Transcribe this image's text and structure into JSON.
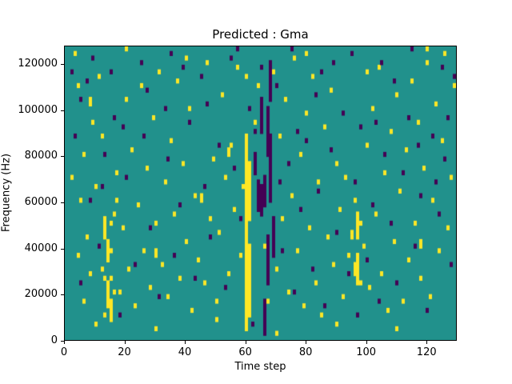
{
  "figure": {
    "title": "Predicted : Gma",
    "xlabel": "Time step",
    "ylabel": "Frequency (Hz)"
  },
  "chart_data": {
    "type": "heatmap",
    "title": "Predicted : Gma",
    "xlabel": "Time step",
    "ylabel": "Frequency (Hz)",
    "xlim": [
      0,
      130
    ],
    "ylim": [
      0,
      128000
    ],
    "x_ticks": [
      0,
      20,
      40,
      60,
      80,
      100,
      120
    ],
    "y_ticks": [
      0,
      20000,
      40000,
      60000,
      80000,
      100000,
      120000
    ],
    "grid_cols": 130,
    "grid_rows": 64,
    "row_height_hz": 2000,
    "legend": "none",
    "colors": {
      "mid": "#21918c",
      "high": "#fde725",
      "low": "#440154"
    },
    "cells": {
      "yellow_ranges": [
        [
          60,
          2,
          44
        ],
        [
          61,
          5,
          20
        ],
        [
          61,
          26,
          38
        ],
        [
          14,
          7,
          12
        ],
        [
          14,
          17,
          21
        ],
        [
          15,
          4,
          8
        ],
        [
          13,
          22,
          26
        ],
        [
          97,
          12,
          18
        ],
        [
          97,
          22,
          27
        ],
        [
          96,
          14,
          16
        ],
        [
          30,
          18,
          19
        ],
        [
          45,
          30,
          31
        ],
        [
          8,
          51,
          52
        ],
        [
          118,
          20,
          21
        ],
        [
          54,
          40,
          41
        ]
      ],
      "yellow_cells": [
        [
          13,
          5
        ],
        [
          13,
          13
        ],
        [
          15,
          13
        ],
        [
          15,
          19
        ],
        [
          15,
          25
        ],
        [
          16,
          27
        ],
        [
          16,
          10
        ],
        [
          12,
          15
        ],
        [
          17,
          30
        ],
        [
          2,
          35
        ],
        [
          3,
          62
        ],
        [
          4,
          18
        ],
        [
          4,
          55
        ],
        [
          5,
          30
        ],
        [
          6,
          8
        ],
        [
          6,
          40
        ],
        [
          7,
          22
        ],
        [
          8,
          14
        ],
        [
          9,
          47
        ],
        [
          10,
          33
        ],
        [
          11,
          57
        ],
        [
          12,
          44
        ],
        [
          17,
          36
        ],
        [
          18,
          10
        ],
        [
          19,
          24
        ],
        [
          20,
          52
        ],
        [
          21,
          15
        ],
        [
          22,
          41
        ],
        [
          23,
          7
        ],
        [
          24,
          29
        ],
        [
          25,
          55
        ],
        [
          26,
          19
        ],
        [
          27,
          37
        ],
        [
          28,
          11
        ],
        [
          29,
          48
        ],
        [
          30,
          25
        ],
        [
          31,
          58
        ],
        [
          32,
          16
        ],
        [
          33,
          34
        ],
        [
          34,
          9
        ],
        [
          35,
          43
        ],
        [
          36,
          27
        ],
        [
          37,
          56
        ],
        [
          38,
          13
        ],
        [
          39,
          38
        ],
        [
          40,
          21
        ],
        [
          41,
          50
        ],
        [
          42,
          6
        ],
        [
          43,
          31
        ],
        [
          44,
          17
        ],
        [
          46,
          12
        ],
        [
          47,
          60
        ],
        [
          48,
          26
        ],
        [
          49,
          39
        ],
        [
          50,
          8
        ],
        [
          51,
          23
        ],
        [
          52,
          53
        ],
        [
          53,
          35
        ],
        [
          54,
          14
        ],
        [
          55,
          42
        ],
        [
          56,
          28
        ],
        [
          57,
          59
        ],
        [
          58,
          18
        ],
        [
          59,
          33
        ],
        [
          63,
          47
        ],
        [
          64,
          55
        ],
        [
          66,
          20
        ],
        [
          67,
          8
        ],
        [
          68,
          36
        ],
        [
          69,
          58
        ],
        [
          70,
          15
        ],
        [
          71,
          44
        ],
        [
          72,
          26
        ],
        [
          73,
          52
        ],
        [
          74,
          10
        ],
        [
          75,
          31
        ],
        [
          76,
          61
        ],
        [
          77,
          19
        ],
        [
          78,
          40
        ],
        [
          79,
          7
        ],
        [
          80,
          49
        ],
        [
          81,
          24
        ],
        [
          82,
          57
        ],
        [
          83,
          12
        ],
        [
          84,
          34
        ],
        [
          85,
          5
        ],
        [
          86,
          46
        ],
        [
          87,
          22
        ],
        [
          88,
          54
        ],
        [
          89,
          16
        ],
        [
          90,
          38
        ],
        [
          91,
          28
        ],
        [
          92,
          9
        ],
        [
          93,
          35
        ],
        [
          94,
          18
        ],
        [
          95,
          22
        ],
        [
          95,
          23
        ],
        [
          96,
          30
        ],
        [
          98,
          12
        ],
        [
          98,
          25
        ],
        [
          99,
          20
        ],
        [
          100,
          42
        ],
        [
          101,
          11
        ],
        [
          102,
          50
        ],
        [
          103,
          27
        ],
        [
          104,
          59
        ],
        [
          105,
          14
        ],
        [
          106,
          36
        ],
        [
          107,
          6
        ],
        [
          108,
          45
        ],
        [
          109,
          21
        ],
        [
          110,
          53
        ],
        [
          111,
          32
        ],
        [
          112,
          8
        ],
        [
          113,
          41
        ],
        [
          114,
          17
        ],
        [
          115,
          56
        ],
        [
          116,
          25
        ],
        [
          117,
          47
        ],
        [
          118,
          13
        ],
        [
          119,
          37
        ],
        [
          120,
          60
        ],
        [
          121,
          9
        ],
        [
          122,
          30
        ],
        [
          123,
          51
        ],
        [
          124,
          19
        ],
        [
          125,
          43
        ],
        [
          126,
          62
        ],
        [
          127,
          24
        ],
        [
          128,
          35
        ],
        [
          129,
          55
        ],
        [
          20,
          63
        ],
        [
          40,
          61
        ],
        [
          60,
          57
        ],
        [
          80,
          62
        ],
        [
          100,
          58
        ],
        [
          120,
          63
        ],
        [
          10,
          3
        ],
        [
          30,
          2
        ],
        [
          50,
          4
        ],
        [
          70,
          1
        ],
        [
          90,
          3
        ],
        [
          110,
          2
        ]
      ],
      "purple_ranges": [
        [
          64,
          28,
          34
        ],
        [
          65,
          27,
          33
        ],
        [
          66,
          29,
          35
        ],
        [
          66,
          1,
          8
        ],
        [
          67,
          12,
          22
        ],
        [
          67,
          40,
          50
        ],
        [
          68,
          30,
          44
        ],
        [
          68,
          52,
          60
        ],
        [
          65,
          45,
          52
        ],
        [
          63,
          36,
          40
        ],
        [
          69,
          18,
          26
        ]
      ],
      "purple_cells": [
        [
          2,
          58
        ],
        [
          5,
          12
        ],
        [
          8,
          30
        ],
        [
          11,
          20
        ],
        [
          13,
          40
        ],
        [
          16,
          48
        ],
        [
          18,
          5
        ],
        [
          20,
          35
        ],
        [
          23,
          16
        ],
        [
          26,
          44
        ],
        [
          28,
          24
        ],
        [
          31,
          9
        ],
        [
          34,
          39
        ],
        [
          36,
          18
        ],
        [
          38,
          29
        ],
        [
          41,
          47
        ],
        [
          43,
          13
        ],
        [
          46,
          33
        ],
        [
          48,
          22
        ],
        [
          51,
          42
        ],
        [
          53,
          11
        ],
        [
          56,
          37
        ],
        [
          58,
          26
        ],
        [
          61,
          50
        ],
        [
          62,
          3
        ],
        [
          63,
          45
        ],
        [
          70,
          55
        ],
        [
          72,
          19
        ],
        [
          74,
          38
        ],
        [
          76,
          10
        ],
        [
          78,
          28
        ],
        [
          80,
          43
        ],
        [
          82,
          15
        ],
        [
          84,
          32
        ],
        [
          86,
          7
        ],
        [
          88,
          41
        ],
        [
          90,
          23
        ],
        [
          92,
          49
        ],
        [
          94,
          14
        ],
        [
          96,
          34
        ],
        [
          98,
          46
        ],
        [
          100,
          17
        ],
        [
          102,
          29
        ],
        [
          104,
          8
        ],
        [
          106,
          40
        ],
        [
          108,
          25
        ],
        [
          110,
          12
        ],
        [
          112,
          36
        ],
        [
          114,
          48
        ],
        [
          116,
          20
        ],
        [
          118,
          31
        ],
        [
          120,
          6
        ],
        [
          122,
          44
        ],
        [
          124,
          27
        ],
        [
          126,
          39
        ],
        [
          128,
          16
        ],
        [
          129,
          57
        ],
        [
          5,
          52
        ],
        [
          9,
          61
        ],
        [
          15,
          58
        ],
        [
          25,
          60
        ],
        [
          35,
          62
        ],
        [
          45,
          57
        ],
        [
          55,
          61
        ],
        [
          65,
          59
        ],
        [
          75,
          63
        ],
        [
          85,
          58
        ],
        [
          95,
          62
        ],
        [
          105,
          60
        ],
        [
          115,
          63
        ],
        [
          125,
          59
        ],
        [
          3,
          44
        ],
        [
          7,
          56
        ],
        [
          12,
          33
        ],
        [
          19,
          46
        ],
        [
          27,
          54
        ],
        [
          33,
          50
        ],
        [
          39,
          59
        ],
        [
          47,
          51
        ],
        [
          57,
          63
        ],
        [
          71,
          34
        ],
        [
          77,
          45
        ],
        [
          83,
          53
        ],
        [
          89,
          60
        ],
        [
          97,
          5
        ],
        [
          103,
          47
        ],
        [
          109,
          56
        ],
        [
          117,
          42
        ],
        [
          123,
          34
        ],
        [
          127,
          48
        ]
      ]
    }
  }
}
